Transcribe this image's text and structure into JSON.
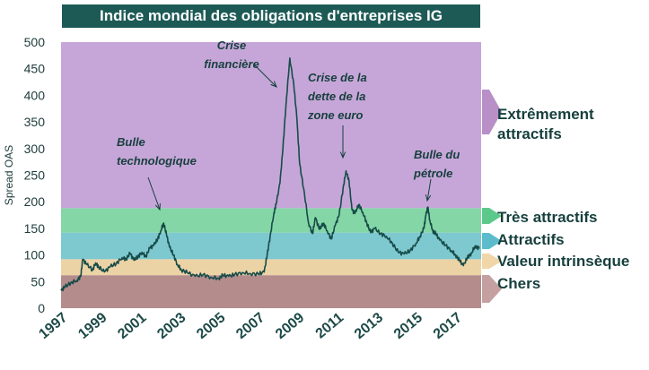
{
  "chart_data": {
    "type": "line",
    "title": "Indice mondial des obligations d'entreprises IG",
    "ylabel": "Spread OAS",
    "xlabel": "",
    "xlim": [
      1997,
      2018.3
    ],
    "ylim": [
      0,
      500
    ],
    "yticks": [
      0,
      50,
      100,
      150,
      200,
      250,
      300,
      350,
      400,
      450,
      500
    ],
    "xticks": [
      "1997",
      "1999",
      "2001",
      "2003",
      "2005",
      "2007",
      "2009",
      "2011",
      "2013",
      "2015",
      "2017"
    ],
    "grid": false,
    "bands": [
      {
        "name": "Chers",
        "from": 0,
        "to": 62,
        "color": "#b48c8c"
      },
      {
        "name": "Valeur intrinsèque",
        "from": 62,
        "to": 92,
        "color": "#ecd3a6"
      },
      {
        "name": "Attractifs",
        "from": 92,
        "to": 142,
        "color": "#7ec8d0"
      },
      {
        "name": "Très attractifs",
        "from": 142,
        "to": 188,
        "color": "#84d6a6"
      },
      {
        "name": "Extrêmement attractifs",
        "from": 188,
        "to": 500,
        "color": "#c6a6d8"
      }
    ],
    "zone_labels": [
      {
        "label": "Extrêmement attractifs",
        "lines": [
          "Extrêmement",
          "attractifs"
        ],
        "arrow_color": "#b98fc8"
      },
      {
        "label": "Très attractifs",
        "lines": [
          "Très attractifs"
        ],
        "arrow_color": "#5cc98a"
      },
      {
        "label": "Attractifs",
        "lines": [
          "Attractifs"
        ],
        "arrow_color": "#5cbccc"
      },
      {
        "label": "Valeur intrinsèque",
        "lines": [
          "Valeur intrinsèque"
        ],
        "arrow_color": "#f0d6a8"
      },
      {
        "label": "Chers",
        "lines": [
          "Chers"
        ],
        "arrow_color": "#c4a0a0"
      }
    ],
    "annotations": [
      {
        "lines": [
          "Bulle",
          "technologique"
        ],
        "x": 2002.1,
        "y": 165
      },
      {
        "lines": [
          "Crise",
          "financière"
        ],
        "x": 2008.2,
        "y": 390
      },
      {
        "lines": [
          "Crise de la",
          "dette de la",
          "zone euro"
        ],
        "x": 2011.3,
        "y": 262
      },
      {
        "lines": [
          "Bulle du",
          "pétrole"
        ],
        "x": 2015.6,
        "y": 190
      }
    ],
    "series": [
      {
        "line_color": "#164b48",
        "x": [
          1997.0,
          1997.2,
          1997.5,
          1997.8,
          1998.0,
          1998.1,
          1998.3,
          1998.6,
          1998.75,
          1998.9,
          1999.2,
          1999.5,
          1999.8,
          2000.1,
          2000.3,
          2000.5,
          2000.7,
          2000.9,
          2001.1,
          2001.3,
          2001.5,
          2001.7,
          2001.9,
          2002.05,
          2002.2,
          2002.35,
          2002.5,
          2002.7,
          2002.9,
          2003.1,
          2003.4,
          2003.8,
          2004.2,
          2004.6,
          2005.0,
          2005.2,
          2005.5,
          2005.8,
          2006.2,
          2006.6,
          2007.0,
          2007.3,
          2007.45,
          2007.6,
          2007.8,
          2007.9,
          2008.1,
          2008.25,
          2008.4,
          2008.6,
          2008.8,
          2008.95,
          2009.1,
          2009.3,
          2009.55,
          2009.75,
          2009.9,
          2010.1,
          2010.3,
          2010.5,
          2010.7,
          2010.9,
          2011.1,
          2011.3,
          2011.45,
          2011.6,
          2011.75,
          2011.9,
          2012.1,
          2012.3,
          2012.5,
          2012.7,
          2012.9,
          2013.2,
          2013.5,
          2013.8,
          2014.1,
          2014.4,
          2014.7,
          2015.0,
          2015.2,
          2015.4,
          2015.5,
          2015.6,
          2015.7,
          2015.85,
          2016.0,
          2016.2,
          2016.5,
          2016.8,
          2017.0,
          2017.2,
          2017.4,
          2017.6,
          2017.8,
          2018.0,
          2018.2
        ],
        "y": [
          33,
          40,
          48,
          52,
          60,
          92,
          82,
          72,
          85,
          78,
          68,
          78,
          84,
          95,
          92,
          103,
          90,
          97,
          105,
          97,
          113,
          118,
          130,
          145,
          160,
          138,
          115,
          100,
          82,
          72,
          67,
          60,
          63,
          58,
          56,
          62,
          60,
          63,
          67,
          65,
          64,
          68,
          100,
          135,
          180,
          195,
          235,
          300,
          380,
          470,
          420,
          360,
          270,
          225,
          160,
          140,
          170,
          148,
          160,
          145,
          130,
          155,
          175,
          225,
          258,
          240,
          185,
          178,
          195,
          180,
          160,
          142,
          150,
          140,
          135,
          122,
          105,
          102,
          108,
          122,
          135,
          150,
          175,
          190,
          165,
          145,
          140,
          128,
          118,
          108,
          100,
          90,
          80,
          95,
          103,
          117,
          112
        ]
      }
    ]
  }
}
